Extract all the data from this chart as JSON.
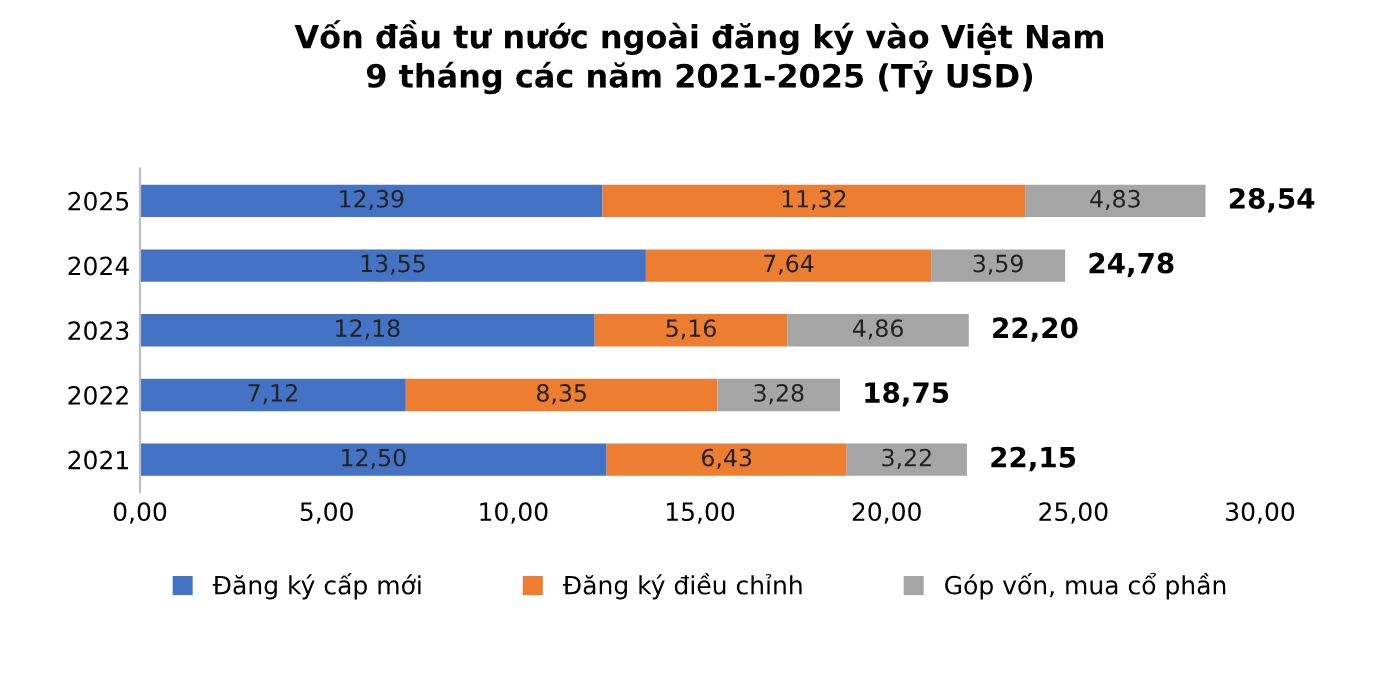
{
  "chart_data": {
    "type": "bar",
    "orientation": "horizontal",
    "stacked": true,
    "title": "Vốn đầu tư nước ngoài đăng ký vào Việt Nam\n9 tháng các năm 2021-2025 (Tỷ USD)",
    "categories": [
      "2025",
      "2024",
      "2023",
      "2022",
      "2021"
    ],
    "series": [
      {
        "name": "Đăng ký cấp mới",
        "color": "#4472c4",
        "values": [
          12.39,
          13.55,
          12.18,
          7.12,
          12.5
        ],
        "value_labels": [
          "12,39",
          "13,55",
          "12,18",
          "7,12",
          "12,50"
        ]
      },
      {
        "name": "Đăng ký điều chỉnh",
        "color": "#ed7d31",
        "values": [
          11.32,
          7.64,
          5.16,
          8.35,
          6.43
        ],
        "value_labels": [
          "11,32",
          "7,64",
          "5,16",
          "8,35",
          "6,43"
        ]
      },
      {
        "name": "Góp vốn, mua cổ phần",
        "color": "#a5a5a5",
        "values": [
          4.83,
          3.59,
          4.86,
          3.28,
          3.22
        ],
        "value_labels": [
          "4,83",
          "3,59",
          "4,86",
          "3,28",
          "3,22"
        ]
      }
    ],
    "totals": [
      "28,54",
      "24,78",
      "22,20",
      "18,75",
      "22,15"
    ],
    "xlim": [
      0,
      30
    ],
    "xticks": [
      {
        "value": 0,
        "label": "0,00"
      },
      {
        "value": 5,
        "label": "5,00"
      },
      {
        "value": 10,
        "label": "10,00"
      },
      {
        "value": 15,
        "label": "15,00"
      },
      {
        "value": 20,
        "label": "20,00"
      },
      {
        "value": 25,
        "label": "25,00"
      },
      {
        "value": 30,
        "label": "30,00"
      }
    ],
    "legend": "bottom",
    "grid": false
  }
}
